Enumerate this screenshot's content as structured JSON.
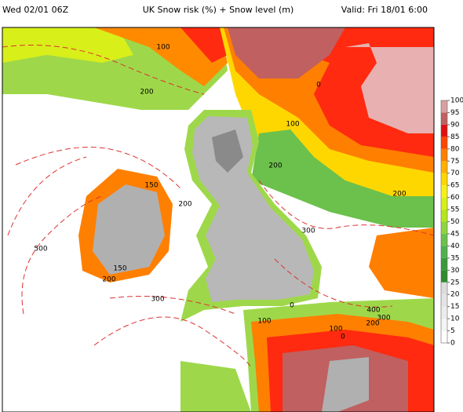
{
  "header": {
    "run": "Wed 02/01 06Z",
    "title": "UK Snow risk (%) + Snow level (m)",
    "valid": "Valid: Fri 18/01 6:00"
  },
  "contour_labels": [
    "100",
    "200",
    "0",
    "100",
    "200",
    "150",
    "200",
    "200",
    "300",
    "500",
    "150",
    "200",
    "300",
    "0",
    "400",
    "300",
    "200",
    "100",
    "100",
    "0"
  ],
  "colorbar": {
    "ticks": [
      0,
      5,
      10,
      15,
      20,
      25,
      30,
      35,
      40,
      45,
      50,
      55,
      60,
      65,
      70,
      75,
      80,
      85,
      90,
      95,
      100
    ],
    "colors": [
      "#ffffff",
      "#f4f4f4",
      "#ececec",
      "#e4e4e4",
      "#dcdcdc",
      "#2e8b2e",
      "#3a9a3a",
      "#4fb04f",
      "#6cc04c",
      "#8fd43f",
      "#b5e61d",
      "#d8ef1a",
      "#f5f019",
      "#ffd700",
      "#ffb000",
      "#ff7f00",
      "#ff4500",
      "#e01010",
      "#c06060",
      "#d8a0a0"
    ]
  }
}
